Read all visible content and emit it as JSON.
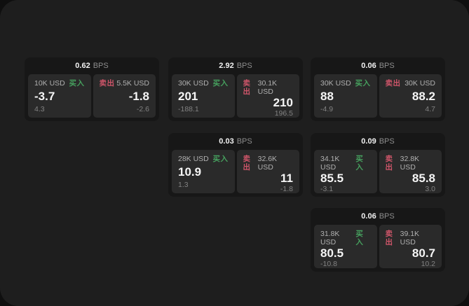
{
  "labels": {
    "bps_unit": "BPS",
    "buy": "买入",
    "sell": "卖出"
  },
  "colors": {
    "buy_accent": "#46a05e",
    "sell_accent": "#cd5569",
    "surface": "#1e1e1e",
    "card": "#171717",
    "tile": "#2a2a2a"
  },
  "cards": [
    {
      "bps": "0.62",
      "buy": {
        "amount": "10K USD",
        "value": "-3.7",
        "delta": "4.3"
      },
      "sell": {
        "amount": "5.5K USD",
        "value": "-1.8",
        "delta": "-2.6"
      }
    },
    {
      "bps": "2.92",
      "buy": {
        "amount": "30K USD",
        "value": "201",
        "delta": "-188.1"
      },
      "sell": {
        "amount": "30.1K USD",
        "value": "210",
        "delta": "196.5"
      }
    },
    {
      "bps": "0.06",
      "buy": {
        "amount": "30K USD",
        "value": "88",
        "delta": "-4.9"
      },
      "sell": {
        "amount": "30K USD",
        "value": "88.2",
        "delta": "4.7"
      }
    },
    {
      "bps": "0.03",
      "buy": {
        "amount": "28K USD",
        "value": "10.9",
        "delta": "1.3"
      },
      "sell": {
        "amount": "32.6K USD",
        "value": "11",
        "delta": "-1.8"
      }
    },
    {
      "bps": "0.09",
      "buy": {
        "amount": "34.1K USD",
        "value": "85.5",
        "delta": "-3.1"
      },
      "sell": {
        "amount": "32.8K USD",
        "value": "85.8",
        "delta": "3.0"
      }
    },
    {
      "bps": "0.06",
      "buy": {
        "amount": "31.8K USD",
        "value": "80.5",
        "delta": "-10.8"
      },
      "sell": {
        "amount": "39.1K USD",
        "value": "80.7",
        "delta": "10.2"
      }
    }
  ]
}
